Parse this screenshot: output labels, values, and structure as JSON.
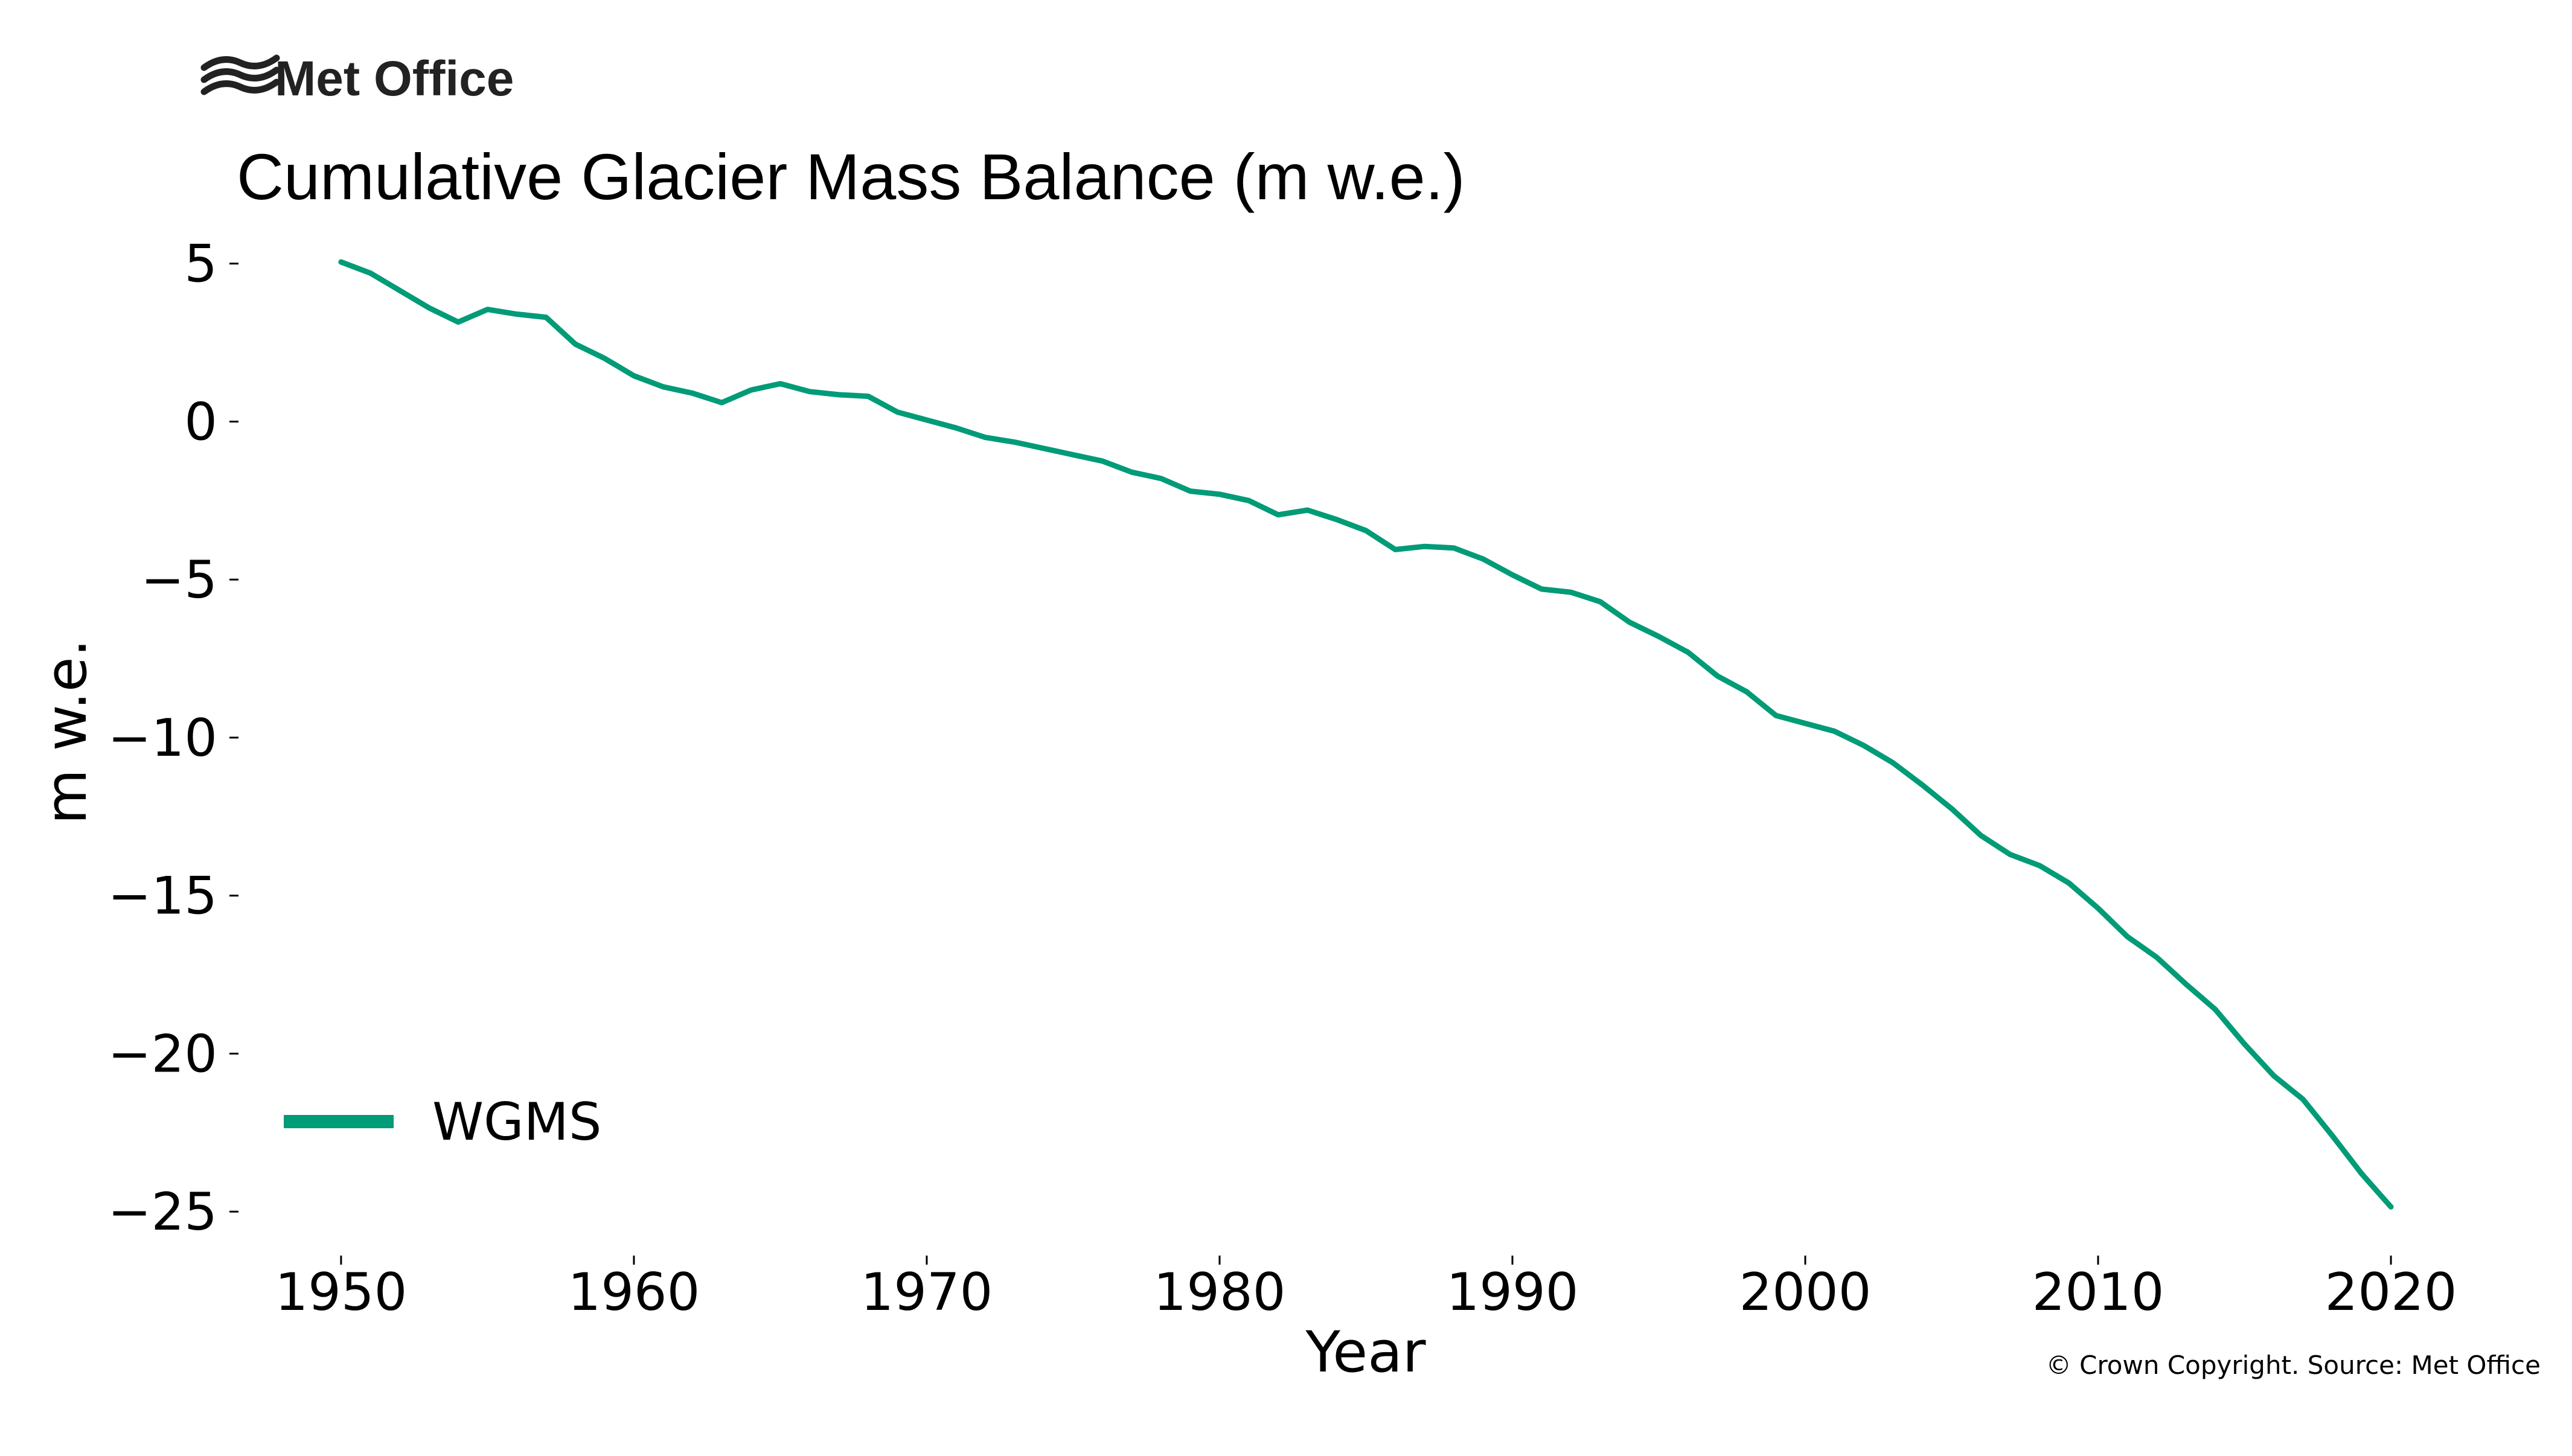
{
  "logo": {
    "text": "Met Office",
    "icon": "met-office-waves-icon"
  },
  "credit": "© Crown Copyright. Source: Met Office",
  "colors": {
    "series": "#009b77",
    "text": "#000000",
    "logo": "#222222"
  },
  "chart_data": {
    "type": "line",
    "title": "Cumulative Glacier Mass Balance (m w.e.)",
    "xlabel": "Year",
    "ylabel": "m w.e.",
    "xlim": [
      1946.6,
      2023.4
    ],
    "ylim": [
      -26.2,
      5.7
    ],
    "xticks": [
      1950,
      1960,
      1970,
      1980,
      1990,
      2000,
      2010,
      2020
    ],
    "xtick_labels": [
      "1950",
      "1960",
      "1970",
      "1980",
      "1990",
      "2000",
      "2010",
      "2020"
    ],
    "yticks": [
      5,
      0,
      -5,
      -10,
      -15,
      -20,
      -25
    ],
    "ytick_labels": [
      "5",
      "0",
      "−5",
      "−10",
      "−15",
      "−20",
      "−25"
    ],
    "grid": false,
    "legend": {
      "position": "lower-left",
      "entries": [
        "WGMS"
      ]
    },
    "series": [
      {
        "name": "WGMS",
        "color": "#009b77",
        "x": [
          1950,
          1951,
          1952,
          1953,
          1954,
          1955,
          1956,
          1957,
          1958,
          1959,
          1960,
          1961,
          1962,
          1963,
          1964,
          1965,
          1966,
          1967,
          1968,
          1969,
          1970,
          1971,
          1972,
          1973,
          1974,
          1975,
          1976,
          1977,
          1978,
          1979,
          1980,
          1981,
          1982,
          1983,
          1984,
          1985,
          1986,
          1987,
          1988,
          1989,
          1990,
          1991,
          1992,
          1993,
          1994,
          1995,
          1996,
          1997,
          1998,
          1999,
          2000,
          2001,
          2002,
          2003,
          2004,
          2005,
          2006,
          2007,
          2008,
          2009,
          2010,
          2011,
          2012,
          2013,
          2014,
          2015,
          2016,
          2017,
          2018,
          2019,
          2020
        ],
        "values": [
          5.05,
          4.7,
          4.15,
          3.6,
          3.15,
          3.55,
          3.4,
          3.3,
          2.45,
          2.0,
          1.45,
          1.1,
          0.9,
          0.6,
          1.0,
          1.2,
          0.95,
          0.85,
          0.8,
          0.3,
          0.05,
          -0.2,
          -0.5,
          -0.65,
          -0.85,
          -1.05,
          -1.25,
          -1.6,
          -1.8,
          -2.2,
          -2.3,
          -2.5,
          -2.95,
          -2.8,
          -3.1,
          -3.45,
          -4.05,
          -3.95,
          -4.0,
          -4.35,
          -4.85,
          -5.3,
          -5.4,
          -5.7,
          -6.35,
          -6.8,
          -7.3,
          -8.05,
          -8.55,
          -9.3,
          -9.55,
          -9.8,
          -10.25,
          -10.8,
          -11.5,
          -12.25,
          -13.1,
          -13.7,
          -14.05,
          -14.6,
          -15.4,
          -16.3,
          -16.95,
          -17.8,
          -18.6,
          -19.7,
          -20.7,
          -21.45,
          -22.6,
          -23.8,
          -24.85
        ]
      }
    ]
  }
}
